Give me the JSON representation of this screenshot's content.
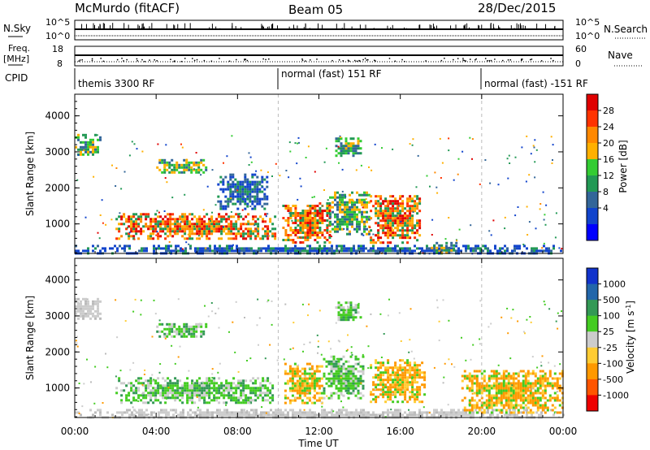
{
  "header": {
    "title": "McMurdo (fitACF)",
    "beam": "Beam 05",
    "date": "28/Dec/2015"
  },
  "top_panels": {
    "nsky_label": "N.Sky",
    "nsearch_label": "N.Search",
    "nsky_ticks": [
      "10^5",
      "10^0"
    ],
    "nsearch_ticks": [
      "10^5",
      "10^0"
    ],
    "freq_label": "Freq.",
    "freq_unit": "[MHz]",
    "freq_ticks": [
      "18",
      "8"
    ],
    "nave_label": "Nave",
    "nave_ticks": [
      "60",
      "0"
    ],
    "cpid_label": "CPID",
    "cpid_segments": [
      {
        "label": "themis 3300 RF",
        "start": 0,
        "end": 10
      },
      {
        "label": "normal (fast) 151 RF",
        "start": 10,
        "end": 20
      },
      {
        "label": "normal (fast) -151 RF",
        "start": 20,
        "end": 24
      }
    ]
  },
  "chart_data": [
    {
      "type": "heatmap",
      "name": "power",
      "ylabel": "Slant Range [km]",
      "ylim": [
        180,
        4600
      ],
      "yticks": [
        1000,
        2000,
        3000,
        4000
      ],
      "xlim": [
        0,
        24
      ],
      "colorbar": {
        "label": "Power [dB]",
        "ticks": [
          "28",
          "24",
          "20",
          "16",
          "12",
          "8",
          "4"
        ],
        "colors": [
          "#e00000",
          "#ff3300",
          "#ff8800",
          "#ffb000",
          "#33cc33",
          "#229955",
          "#336699",
          "#1144cc",
          "#0000ff"
        ]
      },
      "regions": [
        {
          "t0": 0.0,
          "t1": 1.3,
          "r0": 2900,
          "r1": 3500,
          "level": "mid"
        },
        {
          "t0": 0.0,
          "t1": 24.0,
          "r0": 200,
          "r1": 420,
          "level": "low"
        },
        {
          "t0": 2.0,
          "t1": 9.8,
          "r0": 600,
          "r1": 1300,
          "level": "high"
        },
        {
          "t0": 10.2,
          "t1": 12.5,
          "r0": 500,
          "r1": 1600,
          "level": "high"
        },
        {
          "t0": 12.5,
          "t1": 14.5,
          "r0": 700,
          "r1": 1900,
          "level": "mid"
        },
        {
          "t0": 14.5,
          "t1": 17.0,
          "r0": 500,
          "r1": 1800,
          "level": "high"
        },
        {
          "t0": 12.8,
          "t1": 14.0,
          "r0": 2900,
          "r1": 3400,
          "level": "mid"
        },
        {
          "t0": 4.0,
          "t1": 6.5,
          "r0": 2400,
          "r1": 2800,
          "level": "mid"
        },
        {
          "t0": 17.5,
          "t1": 18.8,
          "r0": 200,
          "r1": 500,
          "level": "mid"
        },
        {
          "t0": 7.0,
          "t1": 9.5,
          "r0": 1400,
          "r1": 2400,
          "level": "low"
        }
      ]
    },
    {
      "type": "heatmap",
      "name": "velocity",
      "ylabel": "Slant Range [km]",
      "xlabel": "Time UT",
      "ylim": [
        180,
        4600
      ],
      "yticks": [
        1000,
        2000,
        3000,
        4000
      ],
      "xlim": [
        0,
        24
      ],
      "xticks": [
        "00:00",
        "04:00",
        "08:00",
        "12:00",
        "16:00",
        "20:00",
        "00:00"
      ],
      "colorbar": {
        "label": "Velocity [m s^-1]",
        "ticks": [
          "1000",
          "500",
          "100",
          "25",
          "-25",
          "-100",
          "-500",
          "-1000"
        ],
        "colors": [
          "#1133cc",
          "#2266aa",
          "#339955",
          "#44cc22",
          "#cccccc",
          "#ffcc33",
          "#ff9900",
          "#ff5500",
          "#ee0000"
        ]
      },
      "regions": [
        {
          "t0": 0.0,
          "t1": 1.3,
          "r0": 2900,
          "r1": 3500,
          "level": "grey"
        },
        {
          "t0": 0.0,
          "t1": 24.0,
          "r0": 200,
          "r1": 420,
          "level": "grey"
        },
        {
          "t0": 2.0,
          "t1": 9.8,
          "r0": 600,
          "r1": 1300,
          "level": "green"
        },
        {
          "t0": 10.3,
          "t1": 12.2,
          "r0": 600,
          "r1": 1700,
          "level": "orange"
        },
        {
          "t0": 12.2,
          "t1": 14.2,
          "r0": 700,
          "r1": 1900,
          "level": "green"
        },
        {
          "t0": 14.5,
          "t1": 17.2,
          "r0": 600,
          "r1": 1800,
          "level": "orange"
        },
        {
          "t0": 12.8,
          "t1": 14.0,
          "r0": 2900,
          "r1": 3400,
          "level": "green"
        },
        {
          "t0": 4.0,
          "t1": 6.5,
          "r0": 2400,
          "r1": 2800,
          "level": "green"
        },
        {
          "t0": 19.0,
          "t1": 24.0,
          "r0": 300,
          "r1": 1500,
          "level": "orange"
        }
      ]
    }
  ]
}
